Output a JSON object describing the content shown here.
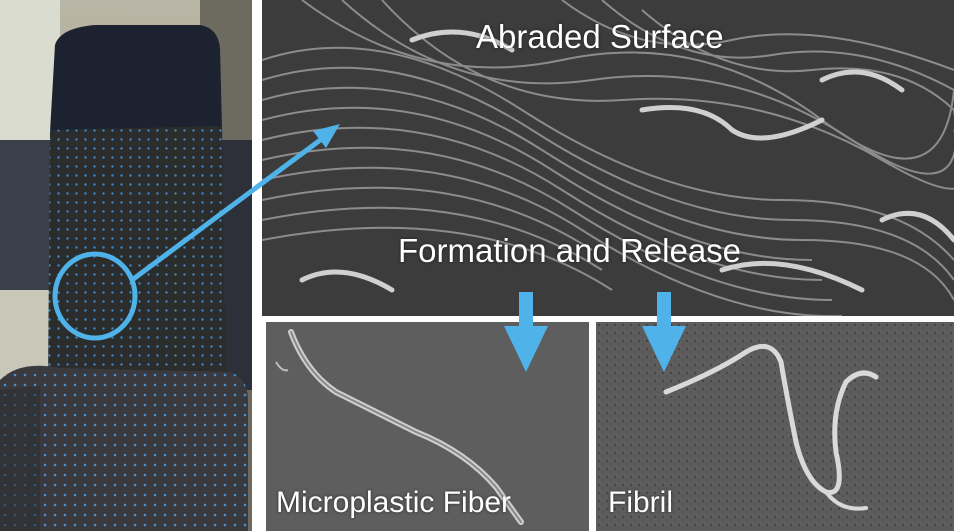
{
  "labels": {
    "abraded_surface": "Abraded Surface",
    "formation_release": "Formation and Release",
    "microplastic_fiber": "Microplastic Fiber",
    "fibril": "Fibril"
  },
  "colors": {
    "accent": "#4fb3ea",
    "seat_fabric": "#2b2d2c",
    "headrest": "#1c2230",
    "sem_background": "#5a5a5a",
    "fiber": "#c8c8c8"
  },
  "icons": {
    "highlight": "circle-highlight-icon",
    "pointer": "diagonal-arrow-icon",
    "flow": "down-arrow-icon"
  }
}
